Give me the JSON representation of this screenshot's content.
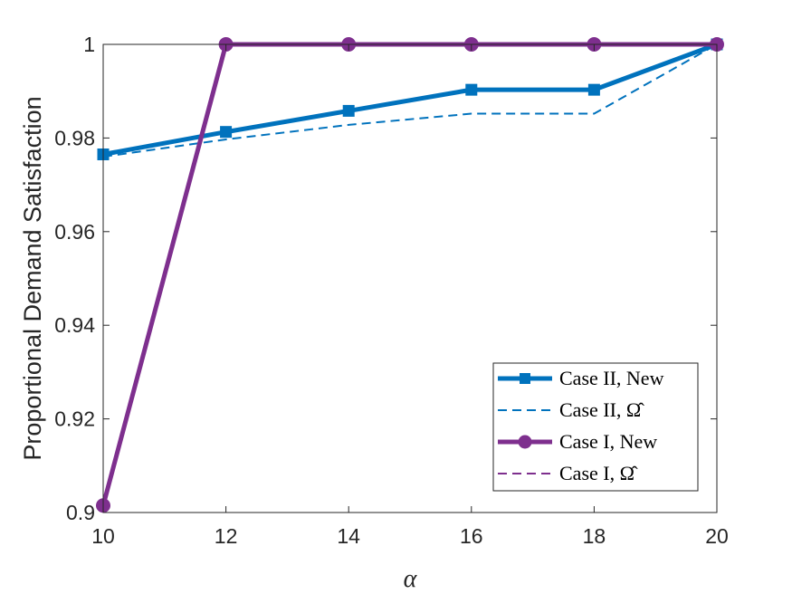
{
  "chart_data": {
    "type": "line",
    "title": "",
    "xlabel": "α",
    "ylabel": "Proportional Demand Satisfaction",
    "xlim": [
      10,
      20
    ],
    "ylim": [
      0.9,
      1.0
    ],
    "xticks": [
      10,
      12,
      14,
      16,
      18,
      20
    ],
    "yticks": [
      0.9,
      0.92,
      0.94,
      0.96,
      0.98,
      1.0
    ],
    "xtick_labels": [
      "10",
      "12",
      "14",
      "16",
      "18",
      "20"
    ],
    "ytick_labels": [
      "0.9",
      "0.92",
      "0.94",
      "0.96",
      "0.98",
      "1"
    ],
    "grid": false,
    "legend_position": "bottom-right",
    "series": [
      {
        "name": "Case II, New",
        "x": [
          10,
          12,
          14,
          16,
          18,
          20
        ],
        "y": [
          0.9765,
          0.9813,
          0.9858,
          0.9903,
          0.9903,
          1.0
        ],
        "color": "#0072BD",
        "style": "solid",
        "marker": "square",
        "width": 5
      },
      {
        "name": "Case II, Ω̂",
        "x": [
          10,
          12,
          14,
          16,
          18,
          20
        ],
        "y": [
          0.976,
          0.9797,
          0.9828,
          0.9852,
          0.9852,
          1.0
        ],
        "color": "#0072BD",
        "style": "dashed",
        "marker": "none",
        "width": 2
      },
      {
        "name": "Case I, New",
        "x": [
          10,
          12,
          14,
          16,
          18,
          20
        ],
        "y": [
          0.9015,
          1.0,
          1.0,
          1.0,
          1.0,
          1.0
        ],
        "color": "#7E2F8E",
        "style": "solid",
        "marker": "circle",
        "width": 5
      },
      {
        "name": "Case I, Ω̂",
        "x": [
          10,
          12,
          14,
          16,
          18,
          20
        ],
        "y": [
          0.9015,
          1.0,
          1.0,
          1.0,
          1.0,
          1.0
        ],
        "color": "#7E2F8E",
        "style": "dashed",
        "marker": "none",
        "width": 2
      }
    ]
  }
}
